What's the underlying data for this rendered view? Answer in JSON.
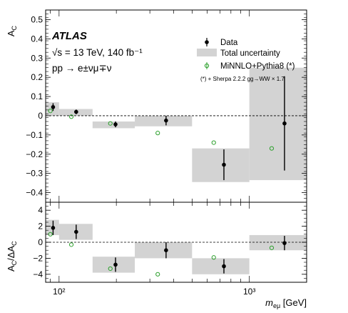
{
  "chart_data": [
    {
      "type": "scatter",
      "panel": "top",
      "ylabel": "A_C",
      "ylim": [
        -0.45,
        0.55
      ],
      "xscale": "log",
      "xlim": [
        85,
        2000
      ],
      "yticks": [
        0.5,
        0.4,
        0.3,
        0.2,
        0.1,
        0,
        -0.1,
        -0.2,
        -0.3,
        -0.4
      ],
      "ytick_labels": [
        "0.5",
        "0.4",
        "0.3",
        "0.2",
        "0.1",
        "0",
        "−0.1",
        "−0.2",
        "−0.3",
        "−0.4"
      ],
      "bins": [
        {
          "low": 85,
          "high": 100,
          "unc_low": 0.0,
          "unc_high": 0.07
        },
        {
          "low": 100,
          "high": 150,
          "unc_low": 0.0,
          "unc_high": 0.035
        },
        {
          "low": 150,
          "high": 250,
          "unc_low": -0.065,
          "unc_high": -0.03
        },
        {
          "low": 250,
          "high": 500,
          "unc_low": -0.055,
          "unc_high": 0.0
        },
        {
          "low": 500,
          "high": 1000,
          "unc_low": -0.345,
          "unc_high": -0.17
        },
        {
          "low": 1000,
          "high": 2000,
          "unc_low": -0.335,
          "unc_high": 0.25
        }
      ],
      "series": [
        {
          "name": "Data",
          "x": [
            93,
            123,
            198,
            365,
            735,
            1530
          ],
          "y": [
            0.045,
            0.02,
            -0.045,
            -0.025,
            -0.255,
            -0.04
          ],
          "err": [
            0.02,
            0.012,
            0.015,
            0.025,
            0.08,
            0.245
          ]
        },
        {
          "name": "MiNNLO+Pythia8 (*)",
          "x": [
            90,
            116,
            186,
            330,
            650,
            1310
          ],
          "y": [
            0.025,
            -0.005,
            -0.04,
            -0.09,
            -0.14,
            -0.17
          ]
        }
      ]
    },
    {
      "type": "scatter",
      "panel": "bottom",
      "xlabel": "m_eμ [GeV]",
      "ylabel": "A_C/ΔA_C",
      "ylim": [
        -5,
        5
      ],
      "xscale": "log",
      "xlim": [
        85,
        2000
      ],
      "yticks": [
        4,
        2,
        0,
        -2,
        -4
      ],
      "ytick_labels": [
        "4",
        "2",
        "0",
        "−2",
        "−4"
      ],
      "xticks": [
        100,
        1000
      ],
      "xtick_labels": [
        "10²",
        "10³"
      ],
      "bins": [
        {
          "low": 85,
          "high": 100,
          "unc_low": 0.9,
          "unc_high": 2.8
        },
        {
          "low": 100,
          "high": 150,
          "unc_low": 0.3,
          "unc_high": 2.3
        },
        {
          "low": 150,
          "high": 250,
          "unc_low": -3.8,
          "unc_high": -1.8
        },
        {
          "low": 250,
          "high": 500,
          "unc_low": -2.0,
          "unc_high": 0.0
        },
        {
          "low": 500,
          "high": 1000,
          "unc_low": -4.0,
          "unc_high": -2.0
        },
        {
          "low": 1000,
          "high": 2000,
          "unc_low": -1.0,
          "unc_high": 0.9
        }
      ],
      "series": [
        {
          "name": "Data",
          "x": [
            93,
            123,
            198,
            365,
            735,
            1530
          ],
          "y": [
            1.8,
            1.3,
            -2.8,
            -1.0,
            -3.0,
            -0.1
          ],
          "err": [
            0.9,
            0.9,
            0.9,
            1.0,
            0.9,
            0.9
          ]
        },
        {
          "name": "MiNNLO+Pythia8 (*)",
          "x": [
            90,
            116,
            186,
            330,
            650,
            1310
          ],
          "y": [
            1.0,
            -0.3,
            -3.3,
            -4.0,
            -1.9,
            -0.7
          ]
        }
      ]
    }
  ],
  "header": {
    "experiment": "ATLAS",
    "energy": "√s = 13 TeV, 140 fb⁻¹",
    "process": "pp → e±νμ∓ν"
  },
  "legend": {
    "data": "Data",
    "total_uncertainty": "Total uncertainty",
    "minnlo": "MiNNLO+Pythia8 (*)",
    "note": "(*) + Sherpa 2.2.2 gg→WW × 1.7"
  },
  "colors": {
    "band": "#d3d3d3",
    "data": "#000000",
    "minnlo": "#2ca02c"
  }
}
